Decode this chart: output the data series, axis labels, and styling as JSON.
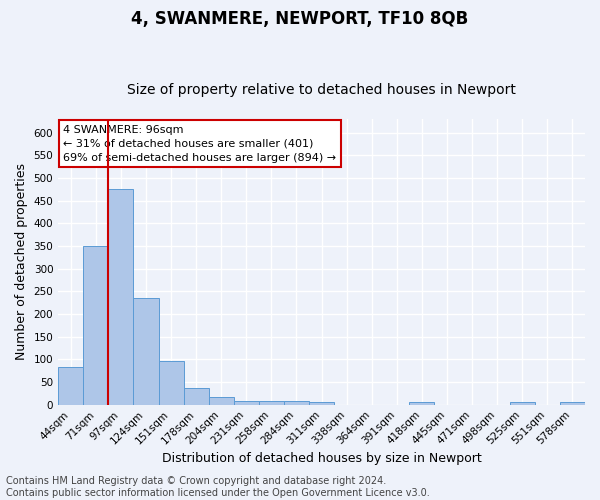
{
  "title": "4, SWANMERE, NEWPORT, TF10 8QB",
  "subtitle": "Size of property relative to detached houses in Newport",
  "xlabel": "Distribution of detached houses by size in Newport",
  "ylabel": "Number of detached properties",
  "categories": [
    "44sqm",
    "71sqm",
    "97sqm",
    "124sqm",
    "151sqm",
    "178sqm",
    "204sqm",
    "231sqm",
    "258sqm",
    "284sqm",
    "311sqm",
    "338sqm",
    "364sqm",
    "391sqm",
    "418sqm",
    "445sqm",
    "471sqm",
    "498sqm",
    "525sqm",
    "551sqm",
    "578sqm"
  ],
  "values": [
    83,
    349,
    475,
    235,
    96,
    37,
    17,
    8,
    9,
    8,
    6,
    0,
    0,
    0,
    6,
    0,
    0,
    0,
    6,
    0,
    6
  ],
  "bar_color": "#aec6e8",
  "bar_edge_color": "#5b9bd5",
  "red_line_x": 1.5,
  "annotation_line1": "4 SWANMERE: 96sqm",
  "annotation_line2": "← 31% of detached houses are smaller (401)",
  "annotation_line3": "69% of semi-detached houses are larger (894) →",
  "annotation_box_facecolor": "#ffffff",
  "annotation_box_edgecolor": "#cc0000",
  "ylim": [
    0,
    630
  ],
  "yticks": [
    0,
    50,
    100,
    150,
    200,
    250,
    300,
    350,
    400,
    450,
    500,
    550,
    600
  ],
  "footer_line1": "Contains HM Land Registry data © Crown copyright and database right 2024.",
  "footer_line2": "Contains public sector information licensed under the Open Government Licence v3.0.",
  "background_color": "#eef2fa",
  "grid_color": "#ffffff",
  "title_fontsize": 12,
  "subtitle_fontsize": 10,
  "axis_label_fontsize": 9,
  "tick_fontsize": 7.5,
  "annotation_fontsize": 8,
  "footer_fontsize": 7
}
